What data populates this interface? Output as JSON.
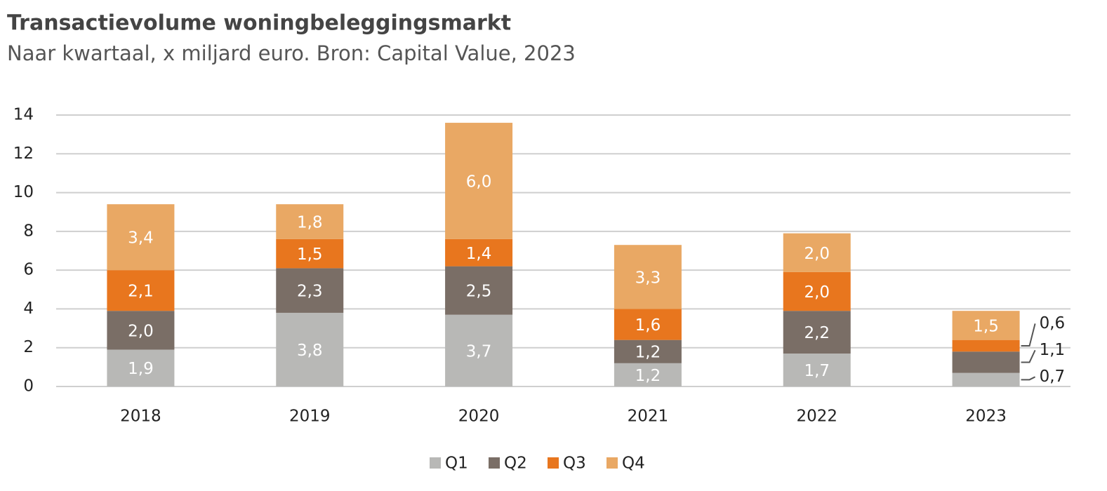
{
  "chart_data": {
    "type": "stacked-bar",
    "title": "Transactievolume woningbeleggingsmarkt",
    "subtitle": "Naar kwartaal, x miljard euro. Bron: Capital Value, 2023",
    "categories": [
      "2018",
      "2019",
      "2020",
      "2021",
      "2022",
      "2023"
    ],
    "series": [
      {
        "name": "Q1",
        "color": "#b8b8b6",
        "values": [
          1.9,
          3.8,
          3.7,
          1.2,
          1.7,
          0.7
        ],
        "value_labels": [
          "1,9",
          "3,8",
          "3,7",
          "1,2",
          "1,7",
          "0,7"
        ]
      },
      {
        "name": "Q2",
        "color": "#7a6e66",
        "values": [
          2.0,
          2.3,
          2.5,
          1.2,
          2.2,
          1.1
        ],
        "value_labels": [
          "2,0",
          "2,3",
          "2,5",
          "1,2",
          "2,2",
          "1,1"
        ]
      },
      {
        "name": "Q3",
        "color": "#e8761e",
        "values": [
          2.1,
          1.5,
          1.4,
          1.6,
          2.0,
          0.6
        ],
        "value_labels": [
          "2,1",
          "1,5",
          "1,4",
          "1,6",
          "2,0",
          "0,6"
        ]
      },
      {
        "name": "Q4",
        "color": "#e9a864",
        "values": [
          3.4,
          1.8,
          6.0,
          3.3,
          2.0,
          1.5
        ],
        "value_labels": [
          "3,4",
          "1,8",
          "6,0",
          "3,3",
          "2,0",
          "1,5"
        ]
      }
    ],
    "ylim": [
      0,
      14
    ],
    "yticks": [
      0,
      2,
      4,
      6,
      8,
      10,
      12,
      14
    ],
    "grid": true,
    "legend": "bottom"
  }
}
